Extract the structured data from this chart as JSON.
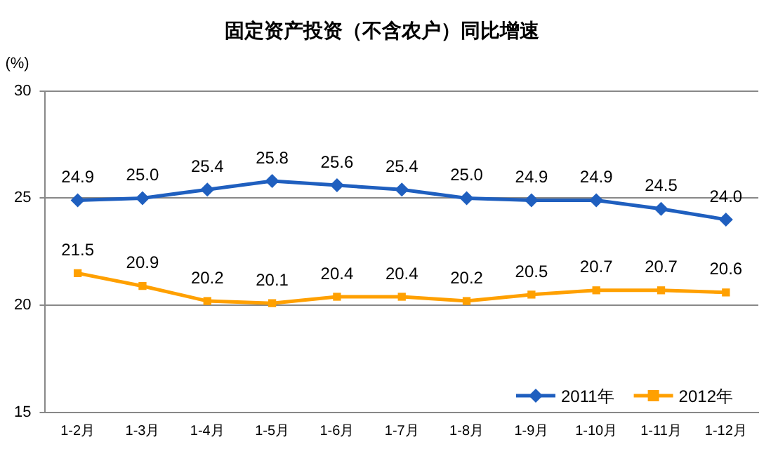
{
  "chart_data": {
    "type": "line",
    "title": "固定资产投资（不含农户）同比增速",
    "ylabel": "(%)",
    "categories": [
      "1-2月",
      "1-3月",
      "1-4月",
      "1-5月",
      "1-6月",
      "1-7月",
      "1-8月",
      "1-9月",
      "1-10月",
      "1-11月",
      "1-12月"
    ],
    "series": [
      {
        "name": "2011年",
        "color": "#1f5fbf",
        "marker": "diamond",
        "values": [
          24.9,
          25.0,
          25.4,
          25.8,
          25.6,
          25.4,
          25.0,
          24.9,
          24.9,
          24.5,
          24.0
        ],
        "value_labels": [
          "24.9",
          "25.0",
          "25.4",
          "25.8",
          "25.6",
          "25.4",
          "25.0",
          "24.9",
          "24.9",
          "24.5",
          "24.0"
        ]
      },
      {
        "name": "2012年",
        "color": "#ffa000",
        "marker": "square",
        "values": [
          21.5,
          20.9,
          20.2,
          20.1,
          20.4,
          20.4,
          20.2,
          20.5,
          20.7,
          20.7,
          20.6
        ],
        "value_labels": [
          "21.5",
          "20.9",
          "20.2",
          "20.1",
          "20.4",
          "20.4",
          "20.2",
          "20.5",
          "20.7",
          "20.7",
          "20.6"
        ]
      }
    ],
    "ylim": [
      15,
      30
    ],
    "yticks": [
      15,
      20,
      25,
      30
    ],
    "grid": "y",
    "legend": "bottom right"
  }
}
